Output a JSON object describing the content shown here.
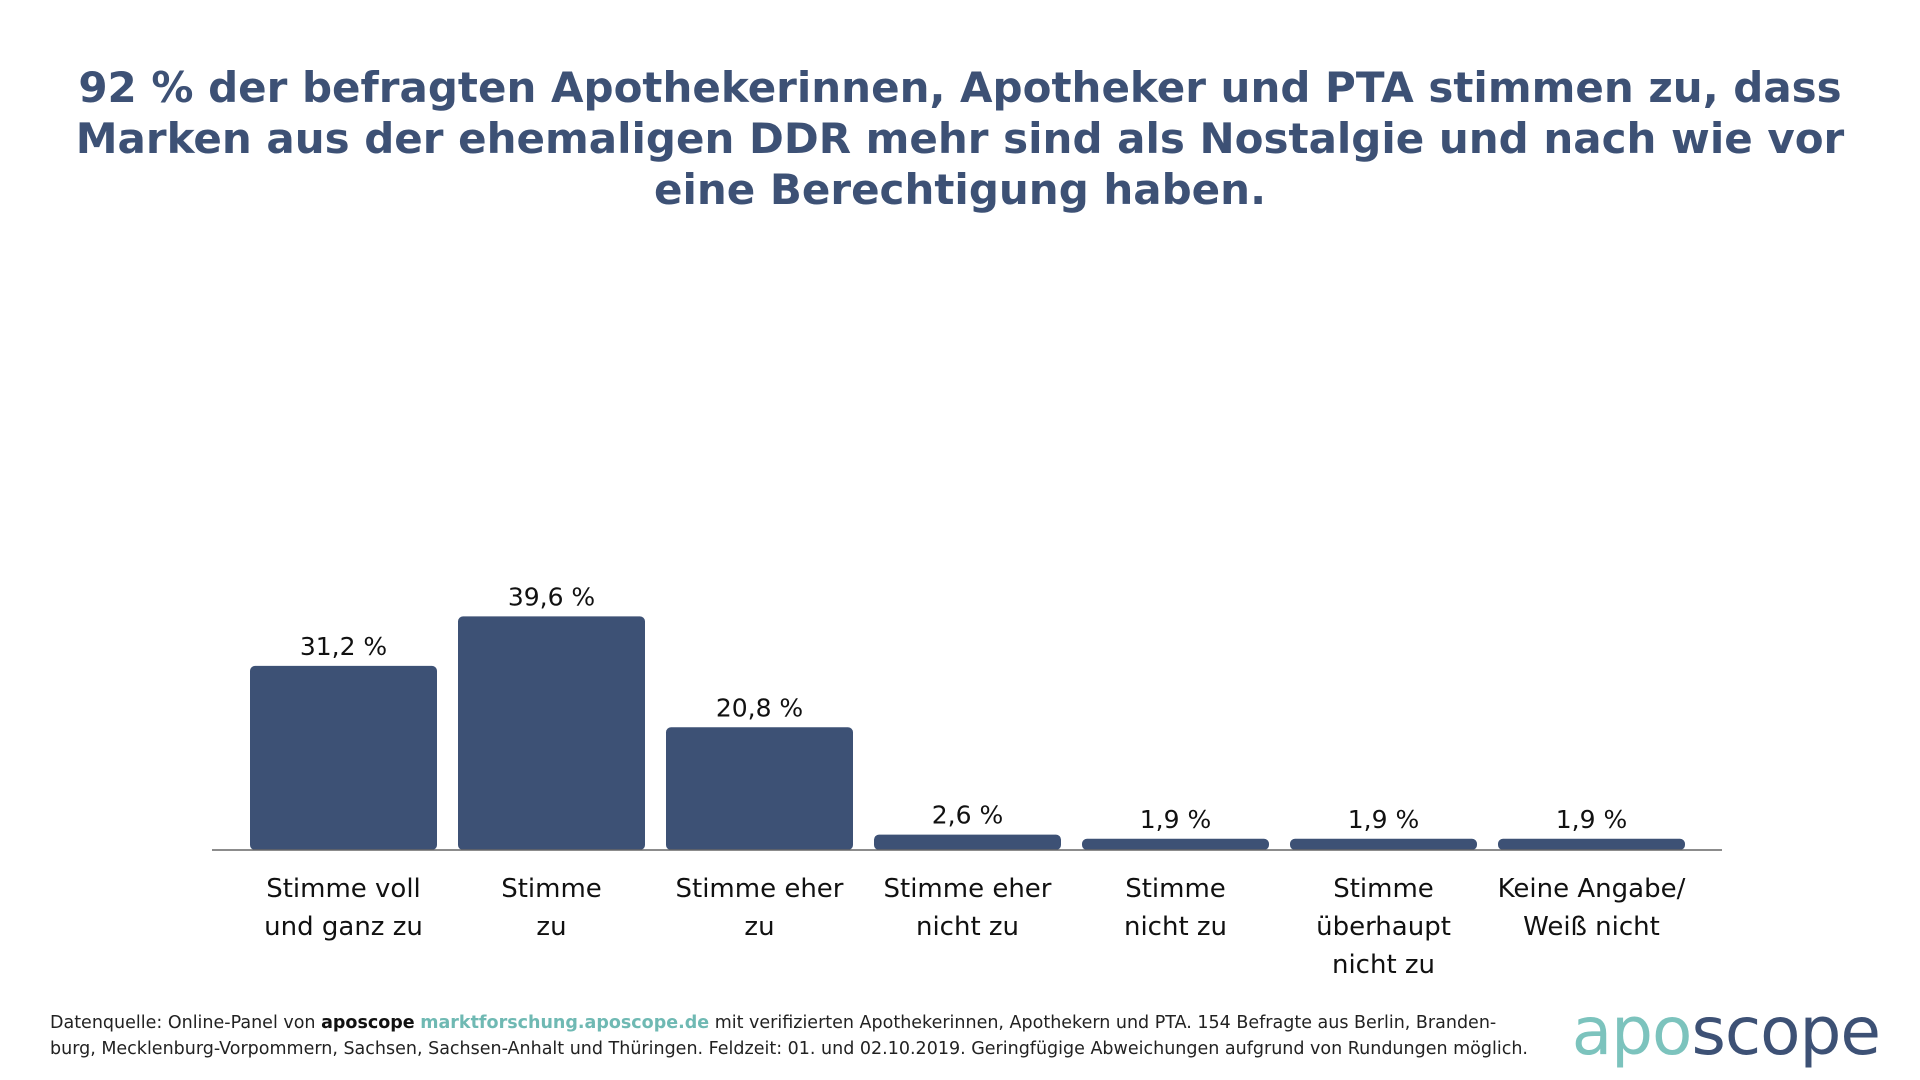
{
  "colors": {
    "bar": "#3d5175",
    "title": "#3d5175",
    "accent": "#7cc3bd"
  },
  "header": {
    "title": "92 % der befragten Apothekerinnen, Apotheker und PTA stimmen zu, dass Marken aus der ehemaligen DDR mehr sind als Nostalgie und nach wie vor eine Berechtigung haben."
  },
  "chart_data": {
    "type": "bar",
    "title": "92 % der befragten Apothekerinnen, Apotheker und PTA stimmen zu, dass Marken aus der ehemaligen DDR mehr sind als Nostalgie und nach wie vor eine Berechtigung haben.",
    "categories": [
      [
        "Stimme voll",
        "und ganz zu"
      ],
      [
        "Stimme",
        "zu"
      ],
      [
        "Stimme eher",
        "zu"
      ],
      [
        "Stimme eher",
        "nicht zu"
      ],
      [
        "Stimme",
        "nicht zu"
      ],
      [
        "Stimme",
        "überhaupt",
        "nicht zu"
      ],
      [
        "Keine Angabe/",
        "Weiß nicht"
      ]
    ],
    "values": [
      31.2,
      39.6,
      20.8,
      2.6,
      1.9,
      1.9,
      1.9
    ],
    "value_labels": [
      "31,2 %",
      "39,6 %",
      "20,8 %",
      "2,6 %",
      "1,9 %",
      "1,9 %",
      "1,9 %"
    ],
    "xlabel": "",
    "ylabel": "",
    "ylim": [
      0,
      100
    ],
    "grid": false,
    "legend": "none"
  },
  "footer": {
    "prefix": "Datenquelle: Online-Panel von ",
    "brand": "aposcope",
    "link": "marktforschung.aposcope.de",
    "line1_rest": " mit verifizierten Apothekerinnen, Apothekern und PTA. 154 Befragte aus Berlin, Branden-",
    "line2": "burg, Mecklenburg-Vorpommern, Sachsen, Sachsen-Anhalt und Thüringen. Feldzeit: 01. und 02.10.2019. Geringfügige Abweichungen aufgrund von Rundungen möglich."
  },
  "logo": {
    "part1": "apo",
    "part2": "scope"
  }
}
